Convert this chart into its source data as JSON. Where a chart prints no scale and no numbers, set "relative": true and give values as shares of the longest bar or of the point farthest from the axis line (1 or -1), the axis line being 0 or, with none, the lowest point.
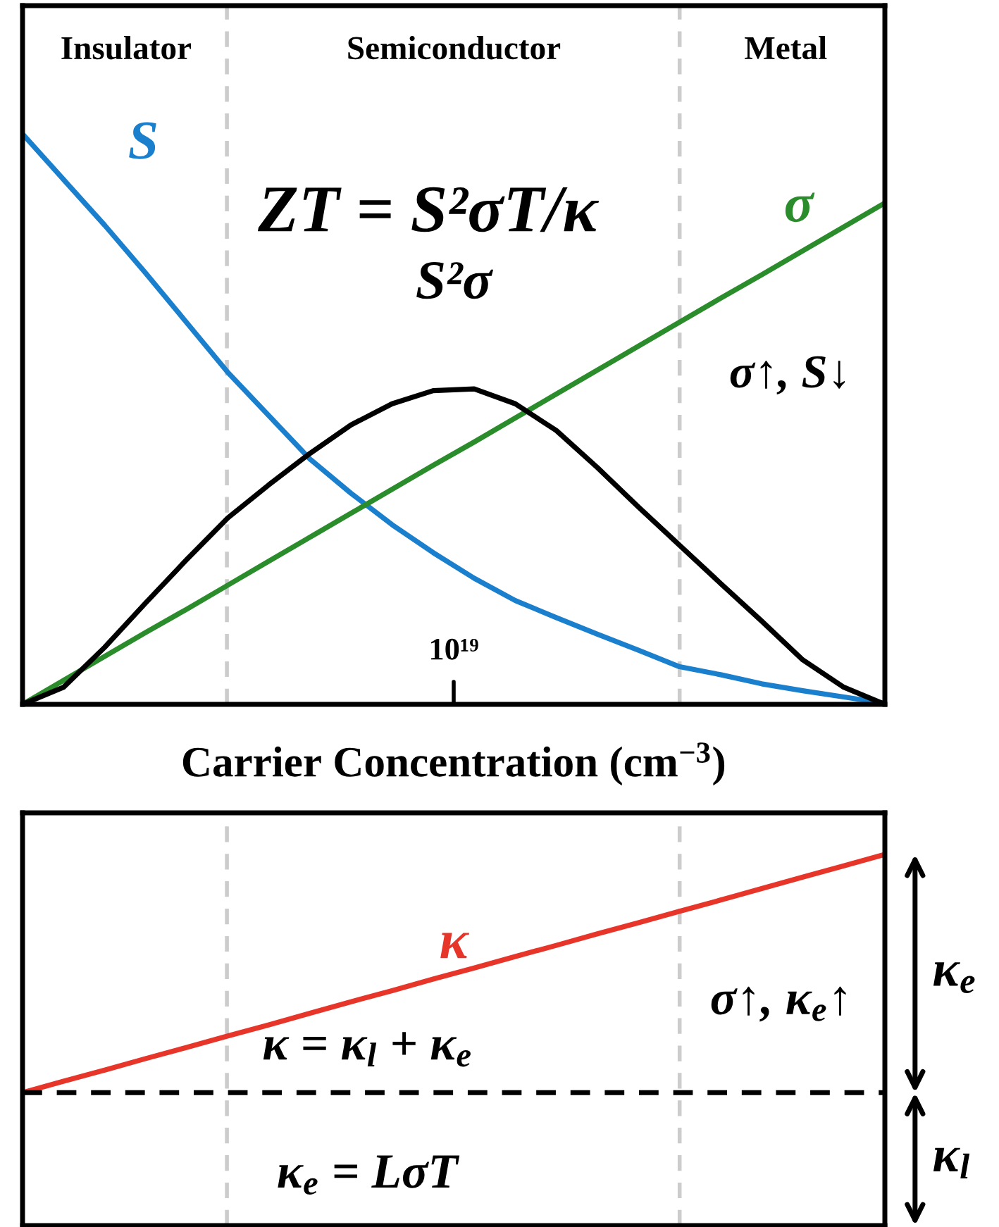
{
  "chart_data": [
    {
      "type": "line",
      "relative": true,
      "xlabel": "Carrier Concentration (cm$^{−3}$)",
      "categories": [
        null,
        null,
        null,
        null,
        null,
        null,
        null,
        null,
        null,
        null,
        null,
        null,
        null,
        null,
        null,
        null,
        null,
        null,
        null,
        null,
        null,
        null
      ],
      "legend": false,
      "grid": false,
      "marker": "none",
      "line_style": "solid",
      "series": [
        {
          "name": "S",
          "color": "#1a7fcc",
          "values": [
            1.0,
            0.92,
            0.84,
            0.756,
            0.669,
            0.582,
            0.506,
            0.43,
            0.37,
            0.315,
            0.266,
            0.221,
            0.182,
            0.152,
            0.123,
            0.095,
            0.066,
            0.052,
            0.036,
            0.024,
            0.013,
            0.002
          ]
        },
        {
          "name": "σ",
          "color": "#2b8c2b",
          "values": [
            0,
            0.042,
            0.084,
            0.126,
            0.167,
            0.209,
            0.251,
            0.293,
            0.335,
            0.377,
            0.419,
            0.46,
            0.502,
            0.544,
            0.586,
            0.628,
            0.67,
            0.712,
            0.753,
            0.795,
            0.837,
            0.879
          ]
        },
        {
          "name": "S²σ",
          "color": "#000000",
          "values": [
            0,
            0.03,
            0.1,
            0.178,
            0.254,
            0.327,
            0.385,
            0.44,
            0.49,
            0.527,
            0.55,
            0.553,
            0.527,
            0.48,
            0.415,
            0.346,
            0.279,
            0.212,
            0.146,
            0.078,
            0.03,
            0
          ]
        }
      ],
      "annotations": [
        "Insulator",
        "Semiconductor",
        "Metal",
        "ZT = S²σT/κ",
        "σ↑, S↓",
        "10¹⁹"
      ]
    },
    {
      "type": "line",
      "relative": true,
      "categories": [
        null,
        null,
        null,
        null,
        null,
        null,
        null,
        null,
        null,
        null,
        null,
        null,
        null,
        null,
        null,
        null,
        null,
        null,
        null,
        null,
        null,
        null
      ],
      "legend": false,
      "grid": false,
      "marker": "none",
      "line_style": "solid",
      "series": [
        {
          "name": "κ",
          "color": "#e8352a",
          "values": [
            0.358,
            0.389,
            0.419,
            0.45,
            0.48,
            0.511,
            0.541,
            0.572,
            0.603,
            0.633,
            0.664,
            0.694,
            0.725,
            0.755,
            0.786,
            0.816,
            0.847,
            0.877,
            0.908,
            0.939,
            0.969,
            1.0
          ]
        }
      ],
      "ref_lines": [
        {
          "axis": "y",
          "value": 0.358,
          "color": "#000000",
          "line_style": "dashed"
        }
      ],
      "annotations": [
        "κ = κ$_{l}$ + κ$_{e}$",
        "κ$_{e}$ = LσT",
        "σ↑, κ$_{e}$↑",
        "κ$_{e}$",
        "κ$_{l}$"
      ]
    }
  ]
}
